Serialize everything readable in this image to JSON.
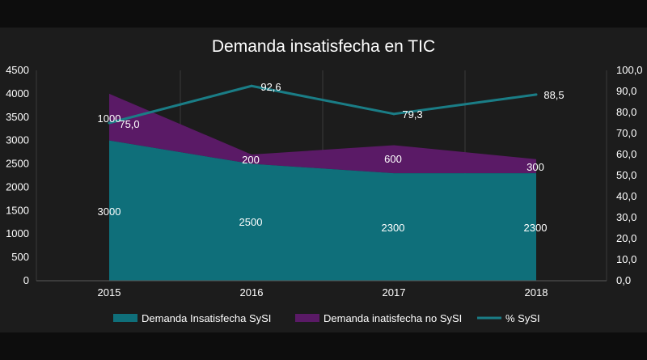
{
  "chart_data": {
    "type": "area",
    "title": "Demanda insatisfecha en TIC",
    "categories": [
      "2015",
      "2016",
      "2017",
      "2018"
    ],
    "y_left": {
      "min": 0,
      "max": 4500,
      "ticks": [
        "0",
        "500",
        "1000",
        "1500",
        "2000",
        "2500",
        "3000",
        "3500",
        "4000",
        "4500"
      ]
    },
    "y_right": {
      "min": 0,
      "max": 100,
      "ticks": [
        "0,0",
        "10,0",
        "20,0",
        "30,0",
        "40,0",
        "50,0",
        "60,0",
        "70,0",
        "80,0",
        "90,0",
        "100,0"
      ]
    },
    "series": [
      {
        "name": "Demanda Insatisfecha SySI",
        "type": "area",
        "axis": "left",
        "color": "#0f6f7a",
        "values": [
          3000,
          2500,
          2300,
          2300
        ],
        "labels": [
          "3000",
          "2500",
          "2300",
          "2300"
        ]
      },
      {
        "name": "Demanda inatisfecha no SySI",
        "type": "area",
        "axis": "left",
        "stacked": true,
        "color": "#5a1a66",
        "values": [
          1000,
          200,
          600,
          300
        ],
        "labels": [
          "1000",
          "200",
          "600",
          "300"
        ]
      },
      {
        "name": "% SySI",
        "type": "line",
        "axis": "right",
        "color": "#1a7d86",
        "values": [
          75.0,
          92.6,
          79.3,
          88.5
        ],
        "labels": [
          "75,0",
          "92,6",
          "79,3",
          "88,5"
        ]
      }
    ],
    "legend": {
      "position": "bottom"
    }
  }
}
